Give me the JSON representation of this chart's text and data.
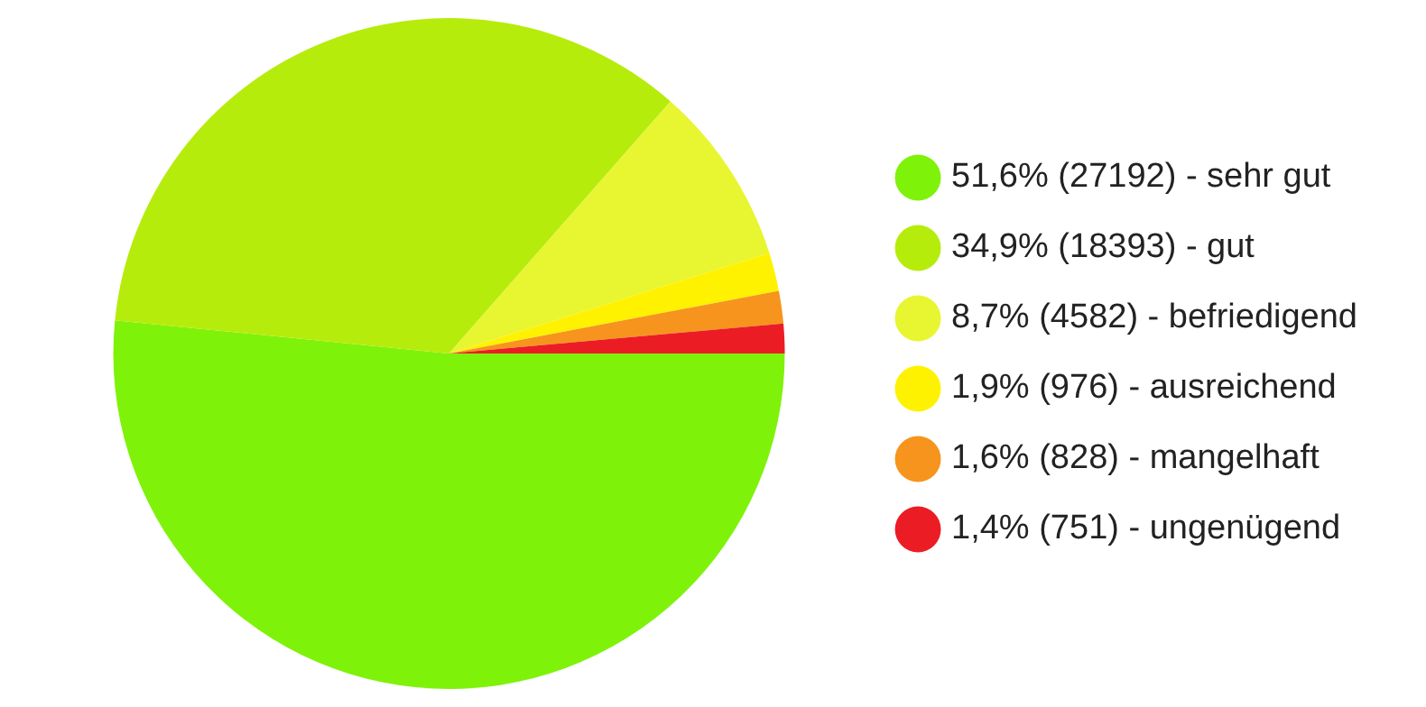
{
  "chart_data": {
    "type": "pie",
    "categories": [
      "51,6% (27192) - sehr gut",
      "34,9% (18393) - gut",
      "8,7% (4582) - befriedigend",
      "1,9% (976) - ausreichend",
      "1,6% (828) - mangelhaft",
      "1,4% (751) - ungenügend"
    ],
    "values": [
      27192,
      18393,
      4582,
      976,
      828,
      751
    ],
    "colors": [
      "#7ff20a",
      "#b6ec0c",
      "#e8f531",
      "#fff200",
      "#f7941d",
      "#ec1c24"
    ],
    "legend": "right"
  }
}
